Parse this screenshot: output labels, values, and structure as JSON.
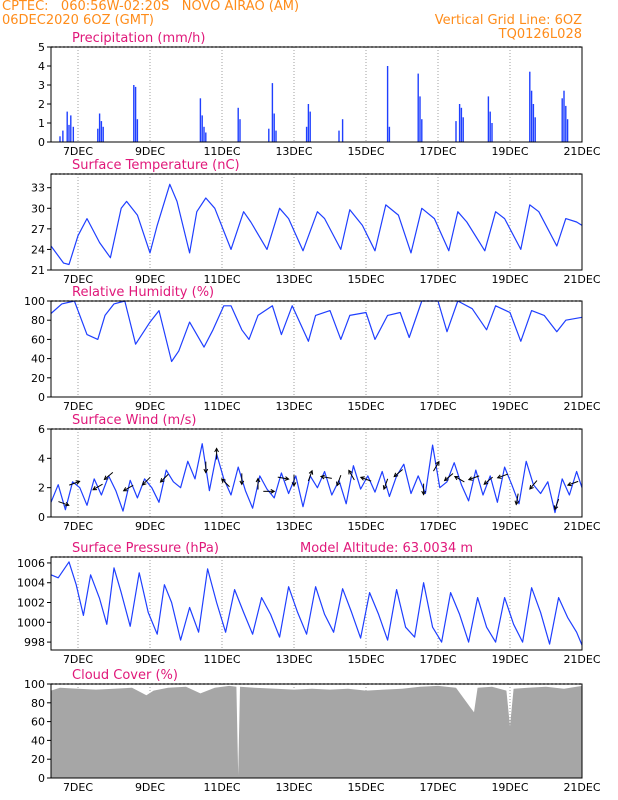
{
  "header": {
    "line1": "CPTEC:   060:56W-02:20S   NOVO AIRAO (AM)",
    "line2": "06DEC2020 6OZ (GMT)",
    "grid_note": "Vertical Grid Line: 6OZ",
    "model_id": "TQ0126L028",
    "model_altitude": "Model Altitude: 63.0034 m"
  },
  "x_labels": [
    "7DEC",
    "9DEC",
    "11DEC",
    "13DEC",
    "15DEC",
    "17DEC",
    "19DEC",
    "21DEC"
  ],
  "colors": {
    "series": "#1f3fff",
    "cloud": "#a6a6a6",
    "title": "#e0187a",
    "header": "#ff8c1a",
    "arrow": "#000000"
  },
  "chart_data": [
    {
      "type": "bar",
      "title": "Precipitation (mm/h)",
      "ylim": [
        0,
        5
      ],
      "yticks": [
        "0",
        "1",
        "2",
        "3",
        "4",
        "5"
      ],
      "x_range": [
        6.25,
        21
      ],
      "values": [
        [
          6.5,
          0.3
        ],
        [
          6.58,
          0.6
        ],
        [
          6.7,
          1.6
        ],
        [
          6.75,
          0.9
        ],
        [
          6.8,
          1.4
        ],
        [
          6.87,
          0.8
        ],
        [
          7.55,
          0.7
        ],
        [
          7.6,
          1.5
        ],
        [
          7.65,
          1.1
        ],
        [
          7.7,
          0.8
        ],
        [
          8.55,
          3.0
        ],
        [
          8.6,
          2.9
        ],
        [
          8.65,
          1.2
        ],
        [
          10.4,
          2.3
        ],
        [
          10.45,
          1.4
        ],
        [
          10.5,
          0.8
        ],
        [
          10.55,
          0.5
        ],
        [
          11.45,
          1.8
        ],
        [
          11.5,
          1.2
        ],
        [
          12.3,
          0.7
        ],
        [
          12.4,
          3.1
        ],
        [
          12.45,
          1.5
        ],
        [
          12.5,
          0.6
        ],
        [
          13.35,
          0.8
        ],
        [
          13.4,
          2.0
        ],
        [
          13.45,
          1.6
        ],
        [
          14.25,
          0.6
        ],
        [
          14.35,
          1.2
        ],
        [
          15.6,
          4.0
        ],
        [
          15.65,
          0.8
        ],
        [
          16.45,
          3.6
        ],
        [
          16.5,
          2.4
        ],
        [
          16.55,
          1.2
        ],
        [
          17.5,
          1.1
        ],
        [
          17.6,
          2.0
        ],
        [
          17.65,
          1.8
        ],
        [
          17.7,
          1.3
        ],
        [
          18.4,
          2.4
        ],
        [
          18.45,
          1.6
        ],
        [
          18.5,
          1.0
        ],
        [
          19.55,
          3.7
        ],
        [
          19.6,
          2.7
        ],
        [
          19.65,
          2.0
        ],
        [
          19.7,
          1.3
        ],
        [
          20.45,
          2.3
        ],
        [
          20.5,
          2.7
        ],
        [
          20.55,
          1.9
        ],
        [
          20.6,
          1.2
        ]
      ]
    },
    {
      "type": "line",
      "title": "Surface Temperature (nC)",
      "ylim": [
        21,
        35
      ],
      "yticks": [
        "21",
        "24",
        "27",
        "30",
        "33"
      ],
      "x_range": [
        6.25,
        21
      ],
      "x": [
        6.25,
        6.6,
        6.75,
        7.0,
        7.25,
        7.6,
        7.9,
        8.2,
        8.35,
        8.65,
        9.0,
        9.2,
        9.55,
        9.75,
        10.1,
        10.3,
        10.55,
        10.8,
        11.25,
        11.6,
        11.8,
        12.25,
        12.6,
        12.85,
        13.25,
        13.65,
        13.85,
        14.3,
        14.55,
        14.9,
        15.25,
        15.55,
        15.9,
        16.25,
        16.55,
        16.9,
        17.3,
        17.55,
        17.8,
        18.3,
        18.6,
        18.85,
        19.3,
        19.55,
        19.8,
        20.3,
        20.55,
        20.85,
        21.0
      ],
      "values": [
        24.5,
        22,
        21.8,
        26,
        28.5,
        25,
        22.8,
        30,
        31,
        29,
        23.5,
        27.5,
        33.5,
        31,
        23.5,
        29.5,
        31.5,
        30,
        24,
        29.5,
        28,
        24,
        30,
        28.5,
        23.8,
        29.5,
        28.5,
        24,
        29.8,
        27.5,
        23.8,
        30.5,
        29,
        23.5,
        30,
        28.5,
        23.8,
        29.5,
        28,
        23.8,
        29.5,
        28.5,
        24,
        30.5,
        29.5,
        24.5,
        28.5,
        28,
        27.5
      ]
    },
    {
      "type": "line",
      "title": "Relative Humidity (%)",
      "ylim": [
        0,
        100
      ],
      "yticks": [
        "0",
        "20",
        "40",
        "60",
        "80",
        "100"
      ],
      "x_range": [
        6.25,
        21
      ],
      "x": [
        6.25,
        6.55,
        6.9,
        7.25,
        7.55,
        7.75,
        8.0,
        8.3,
        8.6,
        9.0,
        9.25,
        9.6,
        9.8,
        10.1,
        10.5,
        10.75,
        11.05,
        11.25,
        11.55,
        11.75,
        12.0,
        12.4,
        12.65,
        12.95,
        13.4,
        13.6,
        14.0,
        14.3,
        14.55,
        15.0,
        15.25,
        15.6,
        15.95,
        16.2,
        16.55,
        17.0,
        17.25,
        17.55,
        17.95,
        18.35,
        18.6,
        19.0,
        19.3,
        19.6,
        19.95,
        20.3,
        20.55,
        21.0
      ],
      "values": [
        87,
        97,
        100,
        65,
        60,
        85,
        97,
        100,
        55,
        78,
        90,
        37,
        48,
        78,
        52,
        70,
        95,
        95,
        70,
        60,
        85,
        95,
        65,
        95,
        58,
        85,
        90,
        60,
        85,
        88,
        60,
        85,
        88,
        62,
        100,
        100,
        68,
        100,
        92,
        70,
        95,
        88,
        58,
        90,
        85,
        68,
        80,
        83
      ]
    },
    {
      "type": "line",
      "title": "Surface Wind (m/s)",
      "ylim": [
        0,
        6
      ],
      "yticks": [
        "0",
        "2",
        "4",
        "6"
      ],
      "x_range": [
        6.25,
        21
      ],
      "x": [
        6.25,
        6.45,
        6.65,
        6.85,
        7.05,
        7.25,
        7.45,
        7.65,
        7.85,
        8.05,
        8.25,
        8.45,
        8.65,
        8.85,
        9.05,
        9.25,
        9.45,
        9.65,
        9.85,
        10.05,
        10.25,
        10.45,
        10.65,
        10.85,
        11.05,
        11.25,
        11.45,
        11.65,
        11.85,
        12.05,
        12.25,
        12.45,
        12.65,
        12.85,
        13.05,
        13.25,
        13.45,
        13.65,
        13.85,
        14.05,
        14.25,
        14.45,
        14.65,
        14.85,
        15.05,
        15.25,
        15.45,
        15.65,
        15.85,
        16.05,
        16.25,
        16.45,
        16.65,
        16.85,
        17.05,
        17.25,
        17.45,
        17.65,
        17.85,
        18.05,
        18.25,
        18.45,
        18.65,
        18.85,
        19.05,
        19.25,
        19.45,
        19.65,
        19.85,
        20.05,
        20.25,
        20.45,
        20.65,
        20.85,
        21.0
      ],
      "values": [
        1.0,
        2.2,
        0.5,
        2.4,
        2.0,
        0.8,
        2.6,
        1.5,
        2.8,
        1.8,
        0.4,
        2.5,
        1.3,
        2.6,
        2.0,
        1.0,
        3.2,
        2.4,
        2.0,
        3.8,
        2.6,
        5.0,
        1.8,
        4.3,
        2.6,
        1.5,
        3.4,
        1.8,
        0.6,
        2.8,
        1.9,
        1.3,
        3.0,
        1.6,
        2.8,
        0.7,
        2.8,
        2.0,
        3.1,
        1.5,
        2.5,
        0.9,
        3.5,
        1.9,
        2.8,
        1.7,
        3.1,
        1.4,
        2.8,
        3.6,
        1.6,
        2.8,
        1.6,
        4.9,
        2.0,
        2.4,
        3.7,
        2.2,
        1.1,
        3.2,
        1.5,
        2.8,
        1.0,
        3.4,
        2.2,
        0.9,
        3.8,
        2.2,
        1.6,
        2.4,
        0.3,
        2.6,
        1.5,
        3.1,
        2.0
      ]
    },
    {
      "type": "line",
      "title": "Surface Pressure (hPa)",
      "ylim": [
        997.2,
        1006.6
      ],
      "yticks": [
        "998",
        "1000",
        "1002",
        "1004",
        "1006"
      ],
      "x_range": [
        6.25,
        21
      ],
      "x": [
        6.25,
        6.45,
        6.75,
        6.95,
        7.15,
        7.35,
        7.6,
        7.8,
        8.0,
        8.2,
        8.45,
        8.7,
        8.95,
        9.2,
        9.4,
        9.6,
        9.85,
        10.1,
        10.35,
        10.6,
        10.85,
        11.1,
        11.35,
        11.6,
        11.85,
        12.1,
        12.35,
        12.6,
        12.85,
        13.1,
        13.35,
        13.6,
        13.85,
        14.1,
        14.35,
        14.6,
        14.85,
        15.1,
        15.35,
        15.6,
        15.85,
        16.1,
        16.35,
        16.6,
        16.85,
        17.1,
        17.35,
        17.6,
        17.85,
        18.1,
        18.35,
        18.6,
        18.85,
        19.1,
        19.35,
        19.6,
        19.85,
        20.1,
        20.35,
        20.6,
        20.85,
        21.0
      ],
      "values": [
        1004.8,
        1004.5,
        1006.1,
        1003.8,
        1000.7,
        1004.8,
        1002.4,
        999.8,
        1005.5,
        1003.0,
        999.6,
        1005.0,
        1001.0,
        998.8,
        1003.8,
        1002.0,
        998.2,
        1001.5,
        999.0,
        1005.4,
        1002.0,
        999.0,
        1003.3,
        1001.0,
        998.8,
        1002.5,
        1000.8,
        998.5,
        1003.6,
        1001.0,
        998.8,
        1003.6,
        1000.8,
        999.0,
        1003.4,
        1001.0,
        998.4,
        1003.0,
        1000.8,
        998.2,
        1003.3,
        999.5,
        998.5,
        1004.0,
        999.5,
        998.0,
        1003.0,
        1000.8,
        998.0,
        1002.5,
        999.5,
        998.0,
        1002.5,
        999.8,
        998.0,
        1003.5,
        1001.0,
        997.8,
        1002.5,
        1000.5,
        999.0,
        997.7
      ]
    },
    {
      "type": "area",
      "title": "Cloud Cover (%)",
      "ylim": [
        0,
        100
      ],
      "yticks": [
        "0",
        "20",
        "40",
        "60",
        "80",
        "100"
      ],
      "x_range": [
        6.25,
        21
      ],
      "x": [
        6.25,
        6.5,
        7.0,
        7.5,
        8.0,
        8.5,
        8.9,
        9.1,
        9.5,
        10.0,
        10.4,
        10.8,
        11.2,
        11.4,
        11.45,
        11.5,
        11.9,
        12.5,
        13.0,
        13.5,
        14.0,
        14.5,
        15.0,
        15.5,
        16.0,
        16.5,
        17.0,
        17.5,
        17.9,
        18.0,
        18.1,
        18.5,
        18.9,
        19.0,
        19.1,
        19.5,
        20.0,
        20.5,
        21.0
      ],
      "values": [
        93,
        96,
        95,
        94,
        95,
        96,
        88,
        93,
        96,
        97,
        90,
        96,
        98,
        97,
        3,
        97,
        96,
        95,
        94,
        95,
        94,
        95,
        93,
        94,
        95,
        97,
        98,
        96,
        75,
        70,
        96,
        97,
        93,
        55,
        95,
        96,
        97,
        95,
        98
      ]
    }
  ],
  "wind_arrows": [
    {
      "day": 6.6,
      "dir_deg": 110
    },
    {
      "day": 6.9,
      "dir_deg": 70
    },
    {
      "day": 7.55,
      "dir_deg": 240
    },
    {
      "day": 7.85,
      "dir_deg": 230
    },
    {
      "day": 8.4,
      "dir_deg": 240
    },
    {
      "day": 8.9,
      "dir_deg": 225
    },
    {
      "day": 9.4,
      "dir_deg": 225
    },
    {
      "day": 10.55,
      "dir_deg": 180
    },
    {
      "day": 10.85,
      "dir_deg": 0
    },
    {
      "day": 11.1,
      "dir_deg": 315
    },
    {
      "day": 11.55,
      "dir_deg": 180
    },
    {
      "day": 12.0,
      "dir_deg": 0
    },
    {
      "day": 12.3,
      "dir_deg": 90
    },
    {
      "day": 12.7,
      "dir_deg": 100
    },
    {
      "day": 13.0,
      "dir_deg": 180
    },
    {
      "day": 13.45,
      "dir_deg": 20
    },
    {
      "day": 13.9,
      "dir_deg": 280
    },
    {
      "day": 14.25,
      "dir_deg": 200
    },
    {
      "day": 14.6,
      "dir_deg": 330
    },
    {
      "day": 15.0,
      "dir_deg": 290
    },
    {
      "day": 15.55,
      "dir_deg": 200
    },
    {
      "day": 15.9,
      "dir_deg": 230
    },
    {
      "day": 16.6,
      "dir_deg": 180
    },
    {
      "day": 16.95,
      "dir_deg": 30
    },
    {
      "day": 17.3,
      "dir_deg": 230
    },
    {
      "day": 17.6,
      "dir_deg": 300
    },
    {
      "day": 18.0,
      "dir_deg": 250
    },
    {
      "day": 18.4,
      "dir_deg": 230
    },
    {
      "day": 18.8,
      "dir_deg": 250
    },
    {
      "day": 19.2,
      "dir_deg": 190
    },
    {
      "day": 19.65,
      "dir_deg": 220
    },
    {
      "day": 20.3,
      "dir_deg": 200
    },
    {
      "day": 20.75,
      "dir_deg": 250
    }
  ]
}
